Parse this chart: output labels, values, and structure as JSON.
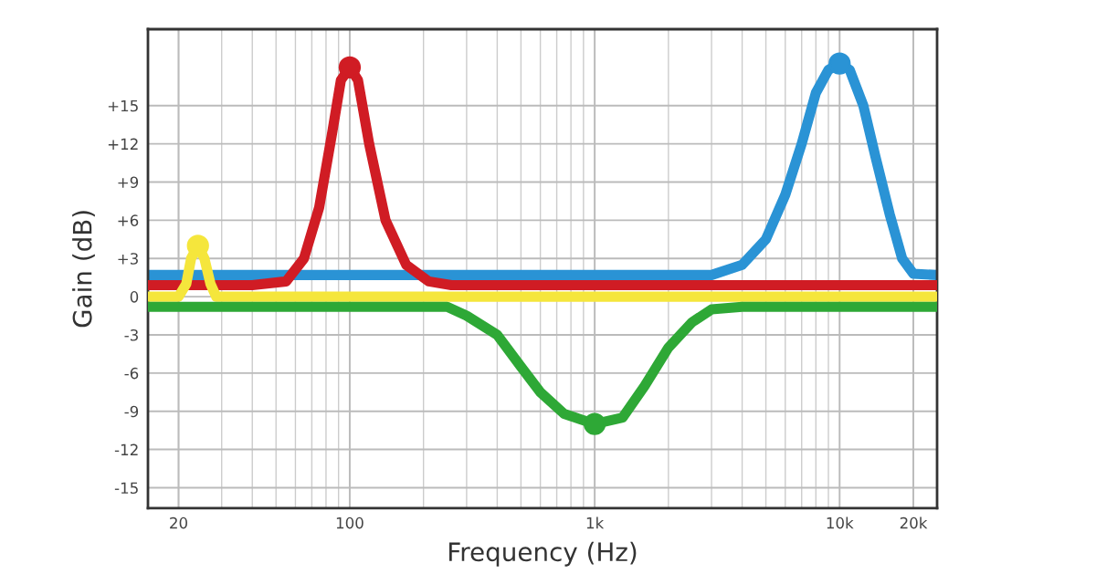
{
  "chart_data": {
    "type": "line",
    "xlabel": "Frequency (Hz)",
    "ylabel": "Gain (dB)",
    "log": "x",
    "xlim": [
      15,
      25000
    ],
    "xticks": [
      20,
      100,
      {
        "value": 1000,
        "label": "1k"
      },
      {
        "value": 10000,
        "label": "10k"
      },
      {
        "value": 20000,
        "label": "20k"
      }
    ],
    "ylim": [
      -16.6,
      21
    ],
    "yticks": [
      {
        "value": 15,
        "label": "+15"
      },
      {
        "value": 12,
        "label": "+12"
      },
      {
        "value": 9,
        "label": "+9"
      },
      {
        "value": 6,
        "label": "+6"
      },
      {
        "value": 3,
        "label": "+3"
      },
      0,
      {
        "value": -3,
        "label": "-3"
      },
      {
        "value": -6,
        "label": "-6"
      },
      {
        "value": -9,
        "label": "-9"
      },
      {
        "value": -12,
        "label": "-12"
      },
      {
        "value": -15,
        "label": "-15"
      }
    ],
    "grid": true,
    "line_style": "solid",
    "series": [
      {
        "color": "#2a93d5",
        "x": [
          15,
          3000,
          4000,
          5000,
          6000,
          7000,
          8000,
          9000,
          10000,
          11000,
          12500,
          14000,
          16000,
          18000,
          20000,
          25000
        ],
        "values": [
          1.7,
          1.7,
          2.5,
          4.5,
          8,
          12,
          16,
          17.8,
          18.3,
          17.8,
          15,
          11,
          6.5,
          3,
          1.8,
          1.7
        ]
      },
      {
        "color": "#d01c24",
        "x": [
          15,
          40,
          55,
          65,
          75,
          85,
          92,
          100,
          108,
          120,
          140,
          170,
          210,
          260,
          25000
        ],
        "values": [
          0.9,
          0.9,
          1.2,
          3,
          7,
          13,
          17,
          18,
          17,
          12,
          6,
          2.5,
          1.2,
          0.9,
          0.9
        ]
      },
      {
        "color": "#f5e63c",
        "x": [
          15,
          20,
          21.5,
          22.5,
          24,
          25.5,
          27,
          28.5,
          25000
        ],
        "values": [
          0,
          0,
          1,
          3,
          4,
          3,
          1,
          0,
          0
        ]
      },
      {
        "color": "#2ea836",
        "x": [
          15,
          250,
          300,
          400,
          500,
          600,
          750,
          1000,
          1300,
          1600,
          2000,
          2500,
          3000,
          4000,
          25000
        ],
        "values": [
          -0.8,
          -0.8,
          -1.5,
          -3,
          -5.5,
          -7.5,
          -9.2,
          -10,
          -9.5,
          -7,
          -4,
          -2,
          -1,
          -0.8,
          -0.8
        ]
      },
      {
        "type": "scatter",
        "marker": "circle",
        "x": [
          10000,
          100,
          24,
          1000
        ],
        "values": [
          18.3,
          18,
          4,
          -10
        ],
        "colors": [
          "#2a93d5",
          "#d01c24",
          "#f5e63c",
          "#2ea836"
        ]
      }
    ]
  }
}
